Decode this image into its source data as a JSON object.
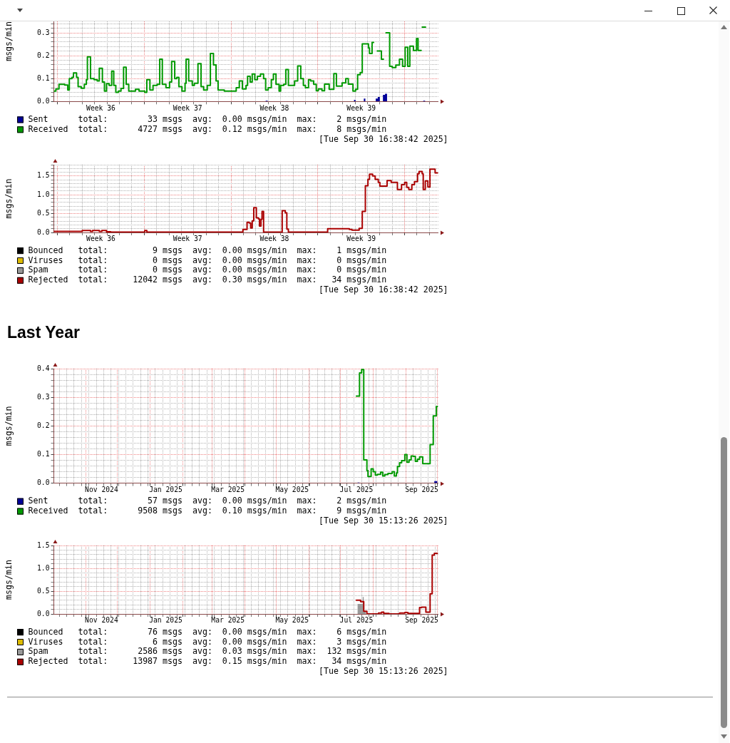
{
  "chart_data": [
    {
      "type": "step",
      "ylabel": "msgs/min",
      "xlim": [
        "2025-08-31T17:00",
        "2025-10-01T17:00"
      ],
      "xticks": [
        {
          "value": "2025-09-01",
          "label": null
        },
        {
          "value": "2025-09-02",
          "label": null
        },
        {
          "value": "2025-09-03",
          "label": null
        },
        {
          "value": "2025-09-04",
          "label": null
        },
        {
          "value": "2025-09-04T12:00",
          "label": "Week 36"
        },
        {
          "value": "2025-09-05",
          "label": null
        },
        {
          "value": "2025-09-06",
          "label": null
        },
        {
          "value": "2025-09-07",
          "label": null
        },
        {
          "value": "2025-09-08",
          "label": null
        },
        {
          "value": "2025-09-09",
          "label": null
        },
        {
          "value": "2025-09-10",
          "label": null
        },
        {
          "value": "2025-09-11",
          "label": null
        },
        {
          "value": "2025-09-11T12:00",
          "label": "Week 37"
        },
        {
          "value": "2025-09-12",
          "label": null
        },
        {
          "value": "2025-09-13",
          "label": null
        },
        {
          "value": "2025-09-14",
          "label": null
        },
        {
          "value": "2025-09-15",
          "label": null
        },
        {
          "value": "2025-09-16",
          "label": null
        },
        {
          "value": "2025-09-17",
          "label": null
        },
        {
          "value": "2025-09-18",
          "label": null
        },
        {
          "value": "2025-09-18T12:00",
          "label": "Week 38"
        },
        {
          "value": "2025-09-19",
          "label": null
        },
        {
          "value": "2025-09-20",
          "label": null
        },
        {
          "value": "2025-09-21",
          "label": null
        },
        {
          "value": "2025-09-22",
          "label": null
        },
        {
          "value": "2025-09-23",
          "label": null
        },
        {
          "value": "2025-09-24",
          "label": null
        },
        {
          "value": "2025-09-25",
          "label": null
        },
        {
          "value": "2025-09-25T12:00",
          "label": "Week 39"
        },
        {
          "value": "2025-09-26",
          "label": null
        },
        {
          "value": "2025-09-27",
          "label": null
        },
        {
          "value": "2025-09-28",
          "label": null
        },
        {
          "value": "2025-09-29",
          "label": null
        },
        {
          "value": "2025-09-30",
          "label": null
        },
        {
          "value": "2025-10-01",
          "label": null
        }
      ],
      "ylim": [
        0,
        0.35
      ],
      "yticks": [
        {
          "value": 0,
          "label": "0.0"
        },
        {
          "value": 0.02,
          "label": null
        },
        {
          "value": 0.04,
          "label": null
        },
        {
          "value": 0.06,
          "label": null
        },
        {
          "value": 0.08,
          "label": null
        },
        0.1,
        {
          "value": 0.12,
          "label": null
        },
        {
          "value": 0.14,
          "label": null
        },
        {
          "value": 0.16,
          "label": null
        },
        {
          "value": 0.18,
          "label": null
        },
        0.2,
        {
          "value": 0.22,
          "label": null
        },
        {
          "value": 0.24,
          "label": null
        },
        {
          "value": 0.26,
          "label": null
        },
        {
          "value": 0.28,
          "label": null
        },
        0.3,
        {
          "value": 0.32,
          "label": null
        },
        {
          "value": 0.34,
          "label": null
        }
      ],
      "grid": true,
      "legend": "bottom",
      "series": [
        {
          "name": "Sent",
          "type": "area",
          "color": "#000099",
          "x": [
            "2025-08-31T17:00",
            "2025-09-17T19:00",
            "2025-09-17T23:00",
            "2025-09-24T22:00",
            "2025-09-25T01:00",
            "2025-09-25T17:00",
            "2025-09-25T20:00",
            "2025-09-26T16:00",
            "2025-09-26T20:00",
            "2025-09-27T00:00",
            "2025-09-27T06:00",
            "2025-09-27T10:00",
            "2025-09-27T14:00",
            "2025-09-30T12:00",
            "2025-09-30T16:00"
          ],
          "values": [
            0,
            0.003,
            0,
            0.007,
            0,
            0.013,
            0,
            0.013,
            0.02,
            0,
            0.029,
            0.034,
            0,
            0.003,
            0.003
          ]
        },
        {
          "name": "Received",
          "color": "#009900",
          "x": [
            "2025-08-31T17:00",
            "2025-08-31T21:00",
            "2025-09-01T03:00",
            "2025-09-01T14:00",
            "2025-09-01T20:00",
            "2025-09-01T23:00",
            "2025-09-02T04:00",
            "2025-09-02T07:00",
            "2025-09-02T13:00",
            "2025-09-02T16:00",
            "2025-09-02T22:00",
            "2025-09-03T04:00",
            "2025-09-03T08:00",
            "2025-09-03T10:00",
            "2025-09-03T16:00",
            "2025-09-03T23:00",
            "2025-09-04T05:00",
            "2025-09-04T09:00",
            "2025-09-04T15:00",
            "2025-09-04T19:00",
            "2025-09-04T23:00",
            "2025-09-05T04:00",
            "2025-09-05T09:00",
            "2025-09-05T13:00",
            "2025-09-05T17:00",
            "2025-09-05T22:00",
            "2025-09-06T03:00",
            "2025-09-06T08:00",
            "2025-09-06T13:00",
            "2025-09-06T18:00",
            "2025-09-07T07:00",
            "2025-09-07T14:00",
            "2025-09-08T01:00",
            "2025-09-08T05:00",
            "2025-09-08T11:00",
            "2025-09-08T17:00",
            "2025-09-09T01:00",
            "2025-09-09T06:00",
            "2025-09-09T11:00",
            "2025-09-09T18:00",
            "2025-09-10T01:00",
            "2025-09-10T05:00",
            "2025-09-10T11:00",
            "2025-09-10T15:00",
            "2025-09-10T19:00",
            "2025-09-11T01:00",
            "2025-09-11T07:00",
            "2025-09-11T09:00",
            "2025-09-11T14:00",
            "2025-09-11T21:00",
            "2025-09-12T01:00",
            "2025-09-12T08:00",
            "2025-09-12T14:00",
            "2025-09-12T19:00",
            "2025-09-13T02:00",
            "2025-09-13T08:00",
            "2025-09-13T14:00",
            "2025-09-13T19:00",
            "2025-09-13T23:00",
            "2025-09-14T11:00",
            "2025-09-15T10:00",
            "2025-09-15T16:00",
            "2025-09-15T22:00",
            "2025-09-16T05:00",
            "2025-09-16T08:00",
            "2025-09-16T13:00",
            "2025-09-16T17:00",
            "2025-09-16T22:00",
            "2025-09-17T03:00",
            "2025-09-17T09:00",
            "2025-09-17T15:00",
            "2025-09-17T19:00",
            "2025-09-18T00:00",
            "2025-09-18T06:00",
            "2025-09-18T10:00",
            "2025-09-18T15:00",
            "2025-09-18T21:00",
            "2025-09-19T00:00",
            "2025-09-19T06:00",
            "2025-09-19T10:00",
            "2025-09-19T15:00",
            "2025-09-20T03:00",
            "2025-09-20T09:00",
            "2025-09-20T15:00",
            "2025-09-20T20:00",
            "2025-09-21T00:00",
            "2025-09-21T06:00",
            "2025-09-21T10:00",
            "2025-09-21T16:00",
            "2025-09-21T21:00",
            "2025-09-22T01:00",
            "2025-09-22T08:00",
            "2025-09-22T13:00",
            "2025-09-22T22:00",
            "2025-09-23T07:00",
            "2025-09-23T12:00",
            "2025-09-23T23:00",
            "2025-09-24T06:00",
            "2025-09-24T11:00",
            "2025-09-24T20:00",
            "2025-09-25T01:00",
            "2025-09-25T05:00",
            "2025-09-25T10:00",
            "2025-09-25T14:00",
            "2025-09-26T02:00",
            "2025-09-26T04:00",
            "2025-09-26T09:00",
            "2025-09-26T12:00",
            "2025-09-26T13:00",
            "2025-09-26T19:00",
            "2025-09-27T03:00",
            "2025-09-27T07:00",
            "2025-09-27T08:00",
            "2025-09-27T12:00",
            "2025-09-27T19:00",
            "2025-09-28T00:00",
            "2025-09-28T07:00",
            "2025-09-28T14:00",
            "2025-09-28T20:00",
            "2025-09-29T01:00",
            "2025-09-29T06:00",
            "2025-09-29T10:00",
            "2025-09-29T17:00",
            "2025-09-29T23:00",
            "2025-09-30T02:00",
            "2025-09-30T08:00",
            "2025-09-30T09:00",
            "2025-09-30T10:00",
            "2025-09-30T16:30"
          ],
          "values": [
            0.045,
            0.055,
            0.075,
            0.072,
            0.05,
            0.1,
            0.105,
            0.125,
            0.105,
            0.065,
            0.058,
            0.075,
            0.095,
            0.195,
            0.1,
            0.095,
            0.09,
            0.145,
            0.085,
            0.045,
            0.078,
            0.07,
            0.133,
            0.07,
            0.04,
            0.045,
            0.057,
            0.15,
            0.075,
            0.045,
            0.053,
            0.045,
            0.04,
            0.095,
            0.05,
            0.07,
            0.075,
            0.185,
            0.075,
            0.06,
            0.085,
            0.175,
            0.1,
            0.105,
            0.065,
            0.045,
            0.08,
            0.185,
            0.09,
            0.07,
            0.08,
            0.165,
            0.065,
            0.05,
            0.07,
            0.21,
            0.16,
            0.09,
            0.05,
            0.045,
            0.06,
            0.09,
            0.055,
            0.07,
            0.11,
            0.085,
            0.12,
            0.095,
            0.11,
            0.12,
            0.1,
            0.05,
            0.06,
            0.095,
            0.12,
            0.075,
            0.045,
            0.07,
            0.075,
            0.14,
            0.07,
            0.09,
            0.155,
            0.1,
            0.07,
            0.06,
            0.095,
            0.09,
            0.075,
            0.047,
            0.055,
            0.047,
            0.076,
            0.053,
            0.122,
            0.067,
            0.081,
            0.1,
            0.076,
            0.045,
            0.053,
            0.117,
            0.126,
            0.252,
            0.234,
            0.21,
            0.258,
            0.258,
            null,
            0.221,
            0.185,
            0.185,
            null,
            0.3,
            0.154,
            0.148,
            0.159,
            0.185,
            0.154,
            0.237,
            0.154,
            0.242,
            0.223,
            0.275,
            0.223,
            0.223,
            null,
            0.325,
            0.325
          ]
        }
      ],
      "annotations": [
        "total:        33 msgs  avg:  0.00 msgs/min  max:    2 msgs/min",
        "total:      4727 msgs  avg:  0.12 msgs/min  max:    8 msgs/min",
        "[Tue Sep 30 16:38:42 2025]"
      ]
    },
    {
      "type": "step",
      "ylabel": "msgs/min",
      "xlim": [
        "2025-08-31T17:00",
        "2025-10-01T17:00"
      ],
      "xticks": [
        {
          "value": "2025-09-01",
          "label": null
        },
        {
          "value": "2025-09-02",
          "label": null
        },
        {
          "value": "2025-09-03",
          "label": null
        },
        {
          "value": "2025-09-04",
          "label": null
        },
        {
          "value": "2025-09-04T12:00",
          "label": "Week 36"
        },
        {
          "value": "2025-09-05",
          "label": null
        },
        {
          "value": "2025-09-06",
          "label": null
        },
        {
          "value": "2025-09-07",
          "label": null
        },
        {
          "value": "2025-09-08",
          "label": null
        },
        {
          "value": "2025-09-09",
          "label": null
        },
        {
          "value": "2025-09-10",
          "label": null
        },
        {
          "value": "2025-09-11",
          "label": null
        },
        {
          "value": "2025-09-11T12:00",
          "label": "Week 37"
        },
        {
          "value": "2025-09-12",
          "label": null
        },
        {
          "value": "2025-09-13",
          "label": null
        },
        {
          "value": "2025-09-14",
          "label": null
        },
        {
          "value": "2025-09-15",
          "label": null
        },
        {
          "value": "2025-09-16",
          "label": null
        },
        {
          "value": "2025-09-17",
          "label": null
        },
        {
          "value": "2025-09-18",
          "label": null
        },
        {
          "value": "2025-09-18T12:00",
          "label": "Week 38"
        },
        {
          "value": "2025-09-19",
          "label": null
        },
        {
          "value": "2025-09-20",
          "label": null
        },
        {
          "value": "2025-09-21",
          "label": null
        },
        {
          "value": "2025-09-22",
          "label": null
        },
        {
          "value": "2025-09-23",
          "label": null
        },
        {
          "value": "2025-09-24",
          "label": null
        },
        {
          "value": "2025-09-25",
          "label": null
        },
        {
          "value": "2025-09-25T12:00",
          "label": "Week 39"
        },
        {
          "value": "2025-09-26",
          "label": null
        },
        {
          "value": "2025-09-27",
          "label": null
        },
        {
          "value": "2025-09-28",
          "label": null
        },
        {
          "value": "2025-09-29",
          "label": null
        },
        {
          "value": "2025-09-30",
          "label": null
        },
        {
          "value": "2025-10-01",
          "label": null
        }
      ],
      "ylim": [
        0,
        1.8
      ],
      "yticks": [
        {
          "value": 0,
          "label": "0.0"
        },
        {
          "value": 0.1,
          "label": null
        },
        {
          "value": 0.2,
          "label": null
        },
        {
          "value": 0.3,
          "label": null
        },
        {
          "value": 0.4,
          "label": null
        },
        0.5,
        {
          "value": 0.6,
          "label": null
        },
        {
          "value": 0.7,
          "label": null
        },
        {
          "value": 0.8,
          "label": null
        },
        {
          "value": 0.9,
          "label": null
        },
        {
          "value": 1,
          "label": "1.0"
        },
        {
          "value": 1.1,
          "label": null
        },
        {
          "value": 1.2,
          "label": null
        },
        {
          "value": 1.3,
          "label": null
        },
        {
          "value": 1.4,
          "label": null
        },
        1.5,
        {
          "value": 1.6,
          "label": null
        },
        {
          "value": 1.7,
          "label": null
        },
        {
          "value": 1.8,
          "label": null
        }
      ],
      "grid": true,
      "legend": "bottom",
      "series": [
        {
          "name": "Bounced",
          "type": "area",
          "color": "#000000"
        },
        {
          "name": "Viruses",
          "type": "area",
          "color": "#ddbb00"
        },
        {
          "name": "Spam",
          "type": "area",
          "color": "#999999"
        },
        {
          "name": "Rejected",
          "color": "#aa0000",
          "x": [
            "2025-08-31T17:00",
            "2025-09-03T00:00",
            "2025-09-03T16:00",
            "2025-09-03T20:00",
            "2025-09-04T09:00",
            "2025-09-04T14:00",
            "2025-09-04T23:00",
            "2025-09-05T07:00",
            "2025-09-08T01:00",
            "2025-09-08T05:00",
            "2025-09-15T23:00",
            "2025-09-16T07:00",
            "2025-09-16T11:00",
            "2025-09-16T14:00",
            "2025-09-16T17:00",
            "2025-09-16T20:00",
            "2025-09-17T01:00",
            "2025-09-17T05:00",
            "2025-09-17T07:00",
            "2025-09-17T10:00",
            "2025-09-17T12:00",
            "2025-09-17T15:00",
            "2025-09-19T03:00",
            "2025-09-19T09:00",
            "2025-09-19T12:00",
            "2025-09-19T15:00",
            "2025-09-22T19:00",
            "2025-09-24T13:00",
            "2025-09-24T18:00",
            "2025-09-25T08:00",
            "2025-09-25T14:00",
            "2025-09-25T20:00",
            "2025-09-26T01:00",
            "2025-09-26T04:00",
            "2025-09-26T10:00",
            "2025-09-26T15:00",
            "2025-09-26T21:00",
            "2025-09-27T00:00",
            "2025-09-27T14:00",
            "2025-09-27T22:00",
            "2025-09-28T10:00",
            "2025-09-28T18:00",
            "2025-09-29T00:00",
            "2025-09-29T04:00",
            "2025-09-29T08:00",
            "2025-09-29T14:00",
            "2025-09-29T19:00",
            "2025-09-30T01:00",
            "2025-09-30T04:00",
            "2025-09-30T10:00",
            "2025-09-30T12:00",
            "2025-09-30T16:00",
            "2025-09-30T21:00",
            "2025-10-01T01:00",
            "2025-10-01T11:00",
            "2025-10-01T16:00"
          ],
          "values": [
            0.03,
            0.05,
            0.03,
            0.05,
            0.03,
            0.05,
            0.02,
            0.01,
            0.05,
            0.01,
            0.08,
            0.27,
            0.25,
            0.12,
            0.31,
            0.66,
            0.39,
            0.36,
            0.17,
            0.35,
            0.56,
            0.01,
            0.58,
            0.52,
            0.09,
            0.01,
            0.1,
            0.08,
            0.06,
            0.11,
            0.56,
            1.24,
            1.41,
            1.55,
            1.5,
            1.41,
            1.33,
            1.23,
            1.38,
            1.33,
            1.14,
            1.27,
            1.33,
            1.2,
            1.14,
            1.27,
            1.35,
            1.56,
            1.62,
            1.56,
            1.14,
            1.37,
            1.21,
            1.68,
            1.58,
            1.58
          ]
        }
      ],
      "annotations": [
        "total:         9 msgs  avg:  0.00 msgs/min  max:    1 msgs/min",
        "total:         0 msgs  avg:  0.00 msgs/min  max:    0 msgs/min",
        "total:         0 msgs  avg:  0.00 msgs/min  max:    0 msgs/min",
        "total:     12042 msgs  avg:  0.30 msgs/min  max:   34 msgs/min",
        "[Tue Sep 30 16:38:42 2025]"
      ]
    },
    {
      "type": "step",
      "title": "Last Year",
      "ylabel": "msgs/min",
      "xlim": [
        "2024-10-01T17:00",
        "2025-10-01T17:00"
      ],
      "xticks": [
        {
          "value": "2024-10-07",
          "label": null
        },
        {
          "value": "2024-10-14",
          "label": null
        },
        {
          "value": "2024-10-21",
          "label": null
        },
        {
          "value": "2024-10-28",
          "label": null
        },
        {
          "value": "2024-11-01",
          "label": null
        },
        {
          "value": "2024-11-04",
          "label": null
        },
        {
          "value": "2024-11-11",
          "label": null
        },
        {
          "value": "2024-11-16",
          "label": "Nov 2024"
        },
        {
          "value": "2024-11-18",
          "label": null
        },
        {
          "value": "2024-11-25",
          "label": null
        },
        {
          "value": "2024-12-01",
          "label": null
        },
        {
          "value": "2024-12-02",
          "label": null
        },
        {
          "value": "2024-12-09",
          "label": null
        },
        {
          "value": "2024-12-16",
          "label": null
        },
        {
          "value": "2024-12-23",
          "label": null
        },
        {
          "value": "2024-12-30",
          "label": null
        },
        {
          "value": "2025-01-01",
          "label": null
        },
        {
          "value": "2025-01-06",
          "label": null
        },
        {
          "value": "2025-01-13",
          "label": null
        },
        {
          "value": "2025-01-16",
          "label": "Jan 2025"
        },
        {
          "value": "2025-01-20",
          "label": null
        },
        {
          "value": "2025-01-27",
          "label": null
        },
        {
          "value": "2025-02-01",
          "label": null
        },
        {
          "value": "2025-02-03",
          "label": null
        },
        {
          "value": "2025-02-10",
          "label": null
        },
        {
          "value": "2025-02-17",
          "label": null
        },
        {
          "value": "2025-02-24",
          "label": null
        },
        {
          "value": "2025-03-01",
          "label": null
        },
        {
          "value": "2025-03-03",
          "label": null
        },
        {
          "value": "2025-03-10",
          "label": null
        },
        {
          "value": "2025-03-16",
          "label": "Mar 2025"
        },
        {
          "value": "2025-03-17",
          "label": null
        },
        {
          "value": "2025-03-24",
          "label": null
        },
        {
          "value": "2025-03-31",
          "label": null
        },
        {
          "value": "2025-04-01",
          "label": null
        },
        {
          "value": "2025-04-07",
          "label": null
        },
        {
          "value": "2025-04-14",
          "label": null
        },
        {
          "value": "2025-04-21",
          "label": null
        },
        {
          "value": "2025-04-28",
          "label": null
        },
        {
          "value": "2025-05-01",
          "label": null
        },
        {
          "value": "2025-05-05",
          "label": null
        },
        {
          "value": "2025-05-12",
          "label": null
        },
        {
          "value": "2025-05-16",
          "label": "May 2025"
        },
        {
          "value": "2025-05-19",
          "label": null
        },
        {
          "value": "2025-05-26",
          "label": null
        },
        {
          "value": "2025-06-01",
          "label": null
        },
        {
          "value": "2025-06-02",
          "label": null
        },
        {
          "value": "2025-06-09",
          "label": null
        },
        {
          "value": "2025-06-16",
          "label": null
        },
        {
          "value": "2025-06-23",
          "label": null
        },
        {
          "value": "2025-06-30",
          "label": null
        },
        {
          "value": "2025-07-01",
          "label": null
        },
        {
          "value": "2025-07-07",
          "label": null
        },
        {
          "value": "2025-07-14",
          "label": null
        },
        {
          "value": "2025-07-16",
          "label": "Jul 2025"
        },
        {
          "value": "2025-07-21",
          "label": null
        },
        {
          "value": "2025-07-28",
          "label": null
        },
        {
          "value": "2025-08-01",
          "label": null
        },
        {
          "value": "2025-08-04",
          "label": null
        },
        {
          "value": "2025-08-11",
          "label": null
        },
        {
          "value": "2025-08-18",
          "label": null
        },
        {
          "value": "2025-08-25",
          "label": null
        },
        {
          "value": "2025-09-01",
          "label": null
        },
        {
          "value": "2025-09-08",
          "label": null
        },
        {
          "value": "2025-09-15",
          "label": null
        },
        {
          "value": "2025-09-16",
          "label": "Sep 2025"
        },
        {
          "value": "2025-09-22",
          "label": null
        },
        {
          "value": "2025-09-29",
          "label": null
        },
        {
          "value": "2025-10-01",
          "label": null
        }
      ],
      "ylim": [
        0,
        0.4
      ],
      "yticks": [
        {
          "value": 0,
          "label": "0.0"
        },
        {
          "value": 0.02,
          "label": null
        },
        {
          "value": 0.04,
          "label": null
        },
        {
          "value": 0.06,
          "label": null
        },
        {
          "value": 0.08,
          "label": null
        },
        0.1,
        {
          "value": 0.12,
          "label": null
        },
        {
          "value": 0.14,
          "label": null
        },
        {
          "value": 0.16,
          "label": null
        },
        {
          "value": 0.18,
          "label": null
        },
        0.2,
        {
          "value": 0.22,
          "label": null
        },
        {
          "value": 0.24,
          "label": null
        },
        {
          "value": 0.26,
          "label": null
        },
        {
          "value": 0.28,
          "label": null
        },
        0.3,
        {
          "value": 0.32,
          "label": null
        },
        {
          "value": 0.34,
          "label": null
        },
        {
          "value": 0.36,
          "label": null
        },
        {
          "value": 0.38,
          "label": null
        },
        0.4
      ],
      "grid": true,
      "legend": "bottom",
      "series": [
        {
          "name": "Sent",
          "type": "area",
          "color": "#000099",
          "x": [
            "2025-07-17",
            "2025-07-19",
            "2025-09-28",
            "2025-10-01"
          ],
          "values": [
            0.002,
            0,
            0.007,
            0.007
          ]
        },
        {
          "name": "Received",
          "color": "#009900",
          "x": [
            "2025-07-16",
            "2025-07-19",
            "2025-07-21",
            "2025-07-23",
            "2025-07-26",
            "2025-07-27",
            "2025-07-30",
            "2025-08-01",
            "2025-08-03",
            "2025-08-05",
            "2025-08-08",
            "2025-08-10",
            "2025-08-12",
            "2025-08-15",
            "2025-08-19",
            "2025-08-21",
            "2025-08-23",
            "2025-08-24",
            "2025-08-26",
            "2025-08-28",
            "2025-08-31",
            "2025-09-02",
            "2025-09-04",
            "2025-09-06",
            "2025-09-08",
            "2025-09-10",
            "2025-09-12",
            "2025-09-14",
            "2025-09-17",
            "2025-09-24",
            "2025-09-27",
            "2025-09-30",
            "2025-10-01"
          ],
          "values": [
            0.304,
            0.385,
            0.397,
            0.081,
            0.044,
            0.023,
            0.05,
            0.04,
            0.028,
            0.031,
            0.038,
            0.025,
            0.03,
            0.034,
            0.04,
            0.025,
            0.036,
            0.058,
            0.071,
            0.079,
            0.1,
            0.073,
            0.081,
            0.095,
            0.094,
            0.076,
            0.084,
            0.092,
            0.068,
            0.135,
            0.235,
            0.268,
            0.268
          ]
        }
      ],
      "annotations": [
        "total:        57 msgs  avg:  0.00 msgs/min  max:    2 msgs/min",
        "total:      9508 msgs  avg:  0.10 msgs/min  max:    9 msgs/min",
        "[Tue Sep 30 15:13:26 2025]"
      ]
    },
    {
      "type": "step",
      "ylabel": "msgs/min",
      "xlim": [
        "2024-10-01T17:00",
        "2025-10-01T17:00"
      ],
      "xticks": [
        {
          "value": "2024-10-07",
          "label": null
        },
        {
          "value": "2024-10-14",
          "label": null
        },
        {
          "value": "2024-10-21",
          "label": null
        },
        {
          "value": "2024-10-28",
          "label": null
        },
        {
          "value": "2024-11-01",
          "label": null
        },
        {
          "value": "2024-11-04",
          "label": null
        },
        {
          "value": "2024-11-11",
          "label": null
        },
        {
          "value": "2024-11-16",
          "label": "Nov 2024"
        },
        {
          "value": "2024-11-18",
          "label": null
        },
        {
          "value": "2024-11-25",
          "label": null
        },
        {
          "value": "2024-12-01",
          "label": null
        },
        {
          "value": "2024-12-02",
          "label": null
        },
        {
          "value": "2024-12-09",
          "label": null
        },
        {
          "value": "2024-12-16",
          "label": null
        },
        {
          "value": "2024-12-23",
          "label": null
        },
        {
          "value": "2024-12-30",
          "label": null
        },
        {
          "value": "2025-01-01",
          "label": null
        },
        {
          "value": "2025-01-06",
          "label": null
        },
        {
          "value": "2025-01-13",
          "label": null
        },
        {
          "value": "2025-01-16",
          "label": "Jan 2025"
        },
        {
          "value": "2025-01-20",
          "label": null
        },
        {
          "value": "2025-01-27",
          "label": null
        },
        {
          "value": "2025-02-01",
          "label": null
        },
        {
          "value": "2025-02-03",
          "label": null
        },
        {
          "value": "2025-02-10",
          "label": null
        },
        {
          "value": "2025-02-17",
          "label": null
        },
        {
          "value": "2025-02-24",
          "label": null
        },
        {
          "value": "2025-03-01",
          "label": null
        },
        {
          "value": "2025-03-03",
          "label": null
        },
        {
          "value": "2025-03-10",
          "label": null
        },
        {
          "value": "2025-03-16",
          "label": "Mar 2025"
        },
        {
          "value": "2025-03-17",
          "label": null
        },
        {
          "value": "2025-03-24",
          "label": null
        },
        {
          "value": "2025-03-31",
          "label": null
        },
        {
          "value": "2025-04-01",
          "label": null
        },
        {
          "value": "2025-04-07",
          "label": null
        },
        {
          "value": "2025-04-14",
          "label": null
        },
        {
          "value": "2025-04-21",
          "label": null
        },
        {
          "value": "2025-04-28",
          "label": null
        },
        {
          "value": "2025-05-01",
          "label": null
        },
        {
          "value": "2025-05-05",
          "label": null
        },
        {
          "value": "2025-05-12",
          "label": null
        },
        {
          "value": "2025-05-16",
          "label": "May 2025"
        },
        {
          "value": "2025-05-19",
          "label": null
        },
        {
          "value": "2025-05-26",
          "label": null
        },
        {
          "value": "2025-06-01",
          "label": null
        },
        {
          "value": "2025-06-02",
          "label": null
        },
        {
          "value": "2025-06-09",
          "label": null
        },
        {
          "value": "2025-06-16",
          "label": null
        },
        {
          "value": "2025-06-23",
          "label": null
        },
        {
          "value": "2025-06-30",
          "label": null
        },
        {
          "value": "2025-07-01",
          "label": null
        },
        {
          "value": "2025-07-07",
          "label": null
        },
        {
          "value": "2025-07-14",
          "label": null
        },
        {
          "value": "2025-07-16",
          "label": "Jul 2025"
        },
        {
          "value": "2025-07-21",
          "label": null
        },
        {
          "value": "2025-07-28",
          "label": null
        },
        {
          "value": "2025-08-01",
          "label": null
        },
        {
          "value": "2025-08-04",
          "label": null
        },
        {
          "value": "2025-08-11",
          "label": null
        },
        {
          "value": "2025-08-18",
          "label": null
        },
        {
          "value": "2025-08-25",
          "label": null
        },
        {
          "value": "2025-09-01",
          "label": null
        },
        {
          "value": "2025-09-08",
          "label": null
        },
        {
          "value": "2025-09-15",
          "label": null
        },
        {
          "value": "2025-09-16",
          "label": "Sep 2025"
        },
        {
          "value": "2025-09-22",
          "label": null
        },
        {
          "value": "2025-09-29",
          "label": null
        },
        {
          "value": "2025-10-01",
          "label": null
        }
      ],
      "ylim": [
        0,
        1.5
      ],
      "yticks": [
        {
          "value": 0,
          "label": "0.0"
        },
        {
          "value": 0.1,
          "label": null
        },
        {
          "value": 0.2,
          "label": null
        },
        {
          "value": 0.3,
          "label": null
        },
        {
          "value": 0.4,
          "label": null
        },
        0.5,
        {
          "value": 0.6,
          "label": null
        },
        {
          "value": 0.7,
          "label": null
        },
        {
          "value": 0.8,
          "label": null
        },
        {
          "value": 0.9,
          "label": null
        },
        {
          "value": 1,
          "label": "1.0"
        },
        {
          "value": 1.1,
          "label": null
        },
        {
          "value": 1.2,
          "label": null
        },
        {
          "value": 1.3,
          "label": null
        },
        {
          "value": 1.4,
          "label": null
        },
        1.5
      ],
      "grid": true,
      "legend": "bottom",
      "series": [
        {
          "name": "Bounced",
          "type": "area",
          "color": "#000000"
        },
        {
          "name": "Viruses",
          "type": "area",
          "color": "#ddbb00"
        },
        {
          "name": "Spam",
          "type": "area",
          "color": "#999999",
          "x": [
            "2025-07-17",
            "2025-07-22",
            "2025-07-23",
            "2025-07-25"
          ],
          "values": [
            0.22,
            0.37,
            0.06,
            0.06
          ]
        },
        {
          "name": "Rejected",
          "color": "#aa0000",
          "x": [
            "2025-07-16",
            "2025-07-20",
            "2025-07-23",
            "2025-07-26",
            "2025-08-06",
            "2025-08-09",
            "2025-08-11",
            "2025-08-16",
            "2025-08-26",
            "2025-08-31",
            "2025-09-03",
            "2025-09-14",
            "2025-09-16",
            "2025-09-20",
            "2025-09-24",
            "2025-09-26",
            "2025-09-28",
            "2025-10-01"
          ],
          "values": [
            0.3,
            0.27,
            0.06,
            0,
            0.02,
            0.04,
            0.01,
            0,
            0.02,
            0.03,
            0.01,
            0.14,
            0.15,
            0.04,
            0.44,
            1.29,
            1.33,
            1.33
          ]
        }
      ],
      "annotations": [
        "total:        76 msgs  avg:  0.00 msgs/min  max:    6 msgs/min",
        "total:         6 msgs  avg:  0.00 msgs/min  max:    3 msgs/min",
        "total:      2586 msgs  avg:  0.03 msgs/min  max:  132 msgs/min",
        "total:     13987 msgs  avg:  0.15 msgs/min  max:   34 msgs/min",
        "[Tue Sep 30 15:13:26 2025]"
      ]
    }
  ]
}
